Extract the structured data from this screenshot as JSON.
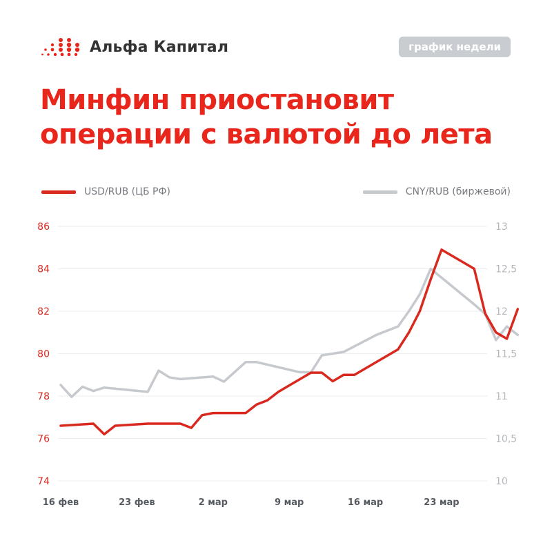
{
  "header": {
    "brand": "Альфа Капитал",
    "badge": "график недели"
  },
  "title_lines": [
    "Минфин приостановит",
    "операции с валютой до лета"
  ],
  "colors": {
    "accent": "#e8261c",
    "series_usd": "#d9291f",
    "series_cny": "#c6c9cd",
    "badge_bg": "#c9cdd2",
    "grid": "#eceef0"
  },
  "icons": {
    "logo": "red-dot-grid-logo-icon"
  },
  "chart_data": {
    "type": "line",
    "legend_placement": "top",
    "grid": true,
    "x_tick_labels": [
      "16 фев",
      "23 фев",
      "2 мар",
      "9 мар",
      "16 мар",
      "23 мар"
    ],
    "y_left": {
      "range": [
        74,
        86
      ],
      "ticks": [
        "74",
        "76",
        "78",
        "80",
        "82",
        "84",
        "86"
      ]
    },
    "y_right": {
      "range": [
        10,
        13
      ],
      "ticks": [
        "10",
        "10,5",
        "11",
        "11,5",
        "12",
        "12,5",
        "13"
      ]
    },
    "series": [
      {
        "name": "USD/RUB (ЦБ РФ)",
        "axis": "left",
        "x": [
          "2024-02-16",
          "2024-02-19",
          "2024-02-20",
          "2024-02-21",
          "2024-02-24",
          "2024-02-27",
          "2024-02-28",
          "2024-02-29",
          "2024-03-01",
          "2024-03-04",
          "2024-03-05",
          "2024-03-06",
          "2024-03-07",
          "2024-03-10",
          "2024-03-11",
          "2024-03-12",
          "2024-03-13",
          "2024-03-14",
          "2024-03-15",
          "2024-03-18",
          "2024-03-19",
          "2024-03-20",
          "2024-03-21",
          "2024-03-22",
          "2024-03-25",
          "2024-03-26",
          "2024-03-27",
          "2024-03-28",
          "2024-03-29"
        ],
        "values": [
          76.6,
          76.7,
          76.2,
          76.6,
          76.7,
          76.7,
          76.5,
          77.1,
          77.2,
          77.2,
          77.6,
          77.8,
          78.2,
          79.1,
          79.1,
          78.7,
          79.0,
          79.0,
          79.3,
          80.2,
          81.0,
          82.0,
          83.5,
          84.9,
          84.0,
          81.9,
          81.0,
          80.7,
          82.1
        ]
      },
      {
        "name": "CNY/RUB (биржевой)",
        "axis": "right",
        "x": [
          "2024-02-16",
          "2024-02-17",
          "2024-02-18",
          "2024-02-19",
          "2024-02-20",
          "2024-02-24",
          "2024-02-25",
          "2024-02-26",
          "2024-02-27",
          "2024-03-01",
          "2024-03-02",
          "2024-03-04",
          "2024-03-05",
          "2024-03-09",
          "2024-03-10",
          "2024-03-11",
          "2024-03-13",
          "2024-03-16",
          "2024-03-18",
          "2024-03-19",
          "2024-03-20",
          "2024-03-21",
          "2024-03-25",
          "2024-03-26",
          "2024-03-27",
          "2024-03-28",
          "2024-03-29"
        ],
        "values": [
          11.13,
          10.99,
          11.11,
          11.06,
          11.1,
          11.05,
          11.3,
          11.22,
          11.2,
          11.23,
          11.17,
          11.4,
          11.4,
          11.28,
          11.28,
          11.48,
          11.52,
          11.72,
          11.82,
          12.0,
          12.2,
          12.5,
          12.08,
          11.97,
          11.66,
          11.82,
          11.72
        ]
      }
    ]
  }
}
